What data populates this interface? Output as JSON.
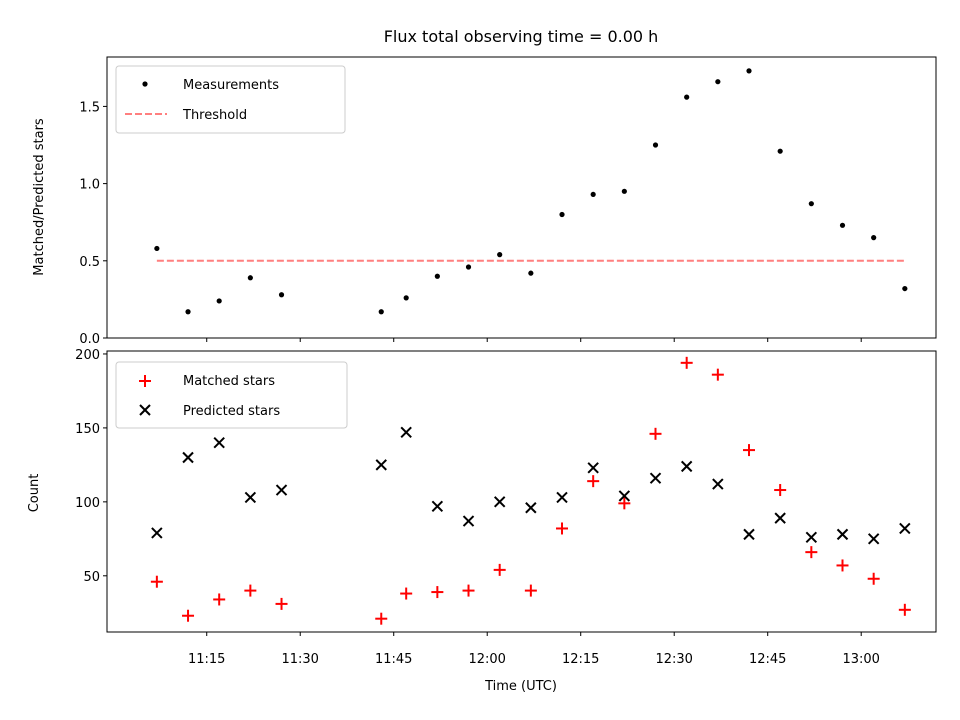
{
  "chart_data": {
    "title": "Flux total observing time = 0.00 h",
    "xlabel": "Time (UTC)",
    "x_ticks": [
      "11:15",
      "11:30",
      "11:45",
      "12:00",
      "12:15",
      "12:30",
      "12:45",
      "13:00"
    ],
    "x_tick_values": [
      "11:15",
      "11:30",
      "11:45",
      "12:00",
      "12:15",
      "12:30",
      "12:45",
      "13:00"
    ],
    "xlim": [
      "10:59",
      "13:12"
    ],
    "times": [
      "11:07",
      "11:12",
      "11:17",
      "11:22",
      "11:27",
      "11:43",
      "11:47",
      "11:52",
      "11:57",
      "12:02",
      "12:07",
      "12:12",
      "12:17",
      "12:22",
      "12:27",
      "12:32",
      "12:37",
      "12:42",
      "12:47",
      "12:52",
      "12:57",
      "13:02",
      "13:07"
    ],
    "panels": [
      {
        "type": "scatter",
        "ylabel": "Matched/Predicted stars",
        "ylim": [
          0,
          1.82
        ],
        "y_ticks": [
          0.0,
          0.5,
          1.0,
          1.5
        ],
        "y_tick_labels": [
          "0.0",
          "0.5",
          "1.0",
          "1.5"
        ],
        "legend_position": "top-left",
        "series": [
          {
            "name": "Measurements",
            "marker": "dot",
            "color": "#000000",
            "values": [
              0.58,
              0.17,
              0.24,
              0.39,
              0.28,
              0.17,
              0.26,
              0.4,
              0.46,
              0.54,
              0.42,
              0.8,
              0.93,
              0.95,
              1.25,
              1.56,
              1.66,
              1.73,
              1.21,
              0.87,
              0.73,
              0.65,
              0.32
            ]
          }
        ],
        "threshold": {
          "name": "Threshold",
          "value": 0.5,
          "x_start": "11:07",
          "x_end": "13:07",
          "color": "#ff7f7f",
          "style": "dashed"
        }
      },
      {
        "type": "scatter",
        "ylabel": "Count",
        "ylim": [
          12,
          202
        ],
        "y_ticks": [
          50,
          100,
          150,
          200
        ],
        "y_tick_labels": [
          "50",
          "100",
          "150",
          "200"
        ],
        "legend_position": "top-left",
        "series": [
          {
            "name": "Matched stars",
            "marker": "plus",
            "color": "#ff0000",
            "values": [
              46,
              23,
              34,
              40,
              31,
              21,
              38,
              39,
              40,
              54,
              40,
              82,
              114,
              99,
              146,
              194,
              186,
              135,
              108,
              66,
              57,
              48,
              27
            ]
          },
          {
            "name": "Predicted stars",
            "marker": "x",
            "color": "#000000",
            "values": [
              79,
              130,
              140,
              103,
              108,
              125,
              147,
              97,
              87,
              100,
              96,
              103,
              123,
              104,
              116,
              124,
              112,
              78,
              89,
              76,
              78,
              75,
              82
            ]
          }
        ]
      }
    ]
  }
}
